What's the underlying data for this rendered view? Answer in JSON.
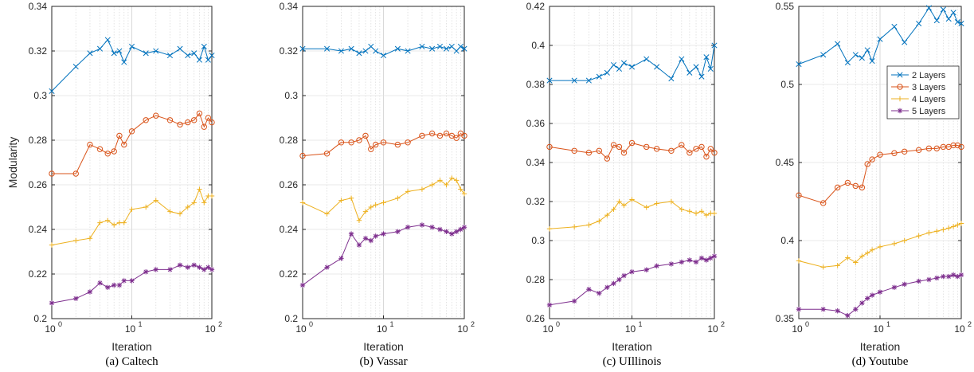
{
  "chart_data": [
    {
      "type": "line",
      "caption": "(a) Caltech",
      "xlabel": "Iteration",
      "ylabel": "Modularity",
      "xscale": "log",
      "xlim": [
        1,
        100
      ],
      "ylim": [
        0.2,
        0.34
      ],
      "yticks": [
        "0.2",
        "0.22",
        "0.24",
        "0.26",
        "0.28",
        "0.3",
        "0.32",
        "0.34"
      ],
      "grid": true,
      "legend": null,
      "series": [
        {
          "name": "2 Layers",
          "color": "#0072BD",
          "marker": "x",
          "x": [
            1,
            2,
            3,
            4,
            5,
            6,
            7,
            8,
            10,
            15,
            20,
            30,
            40,
            50,
            60,
            70,
            80,
            90,
            100
          ],
          "y": [
            0.302,
            0.313,
            0.319,
            0.321,
            0.325,
            0.319,
            0.32,
            0.315,
            0.322,
            0.319,
            0.32,
            0.318,
            0.321,
            0.318,
            0.319,
            0.316,
            0.322,
            0.316,
            0.318
          ]
        },
        {
          "name": "3 Layers",
          "color": "#D95319",
          "marker": "o",
          "x": [
            1,
            2,
            3,
            4,
            5,
            6,
            7,
            8,
            10,
            15,
            20,
            30,
            40,
            50,
            60,
            70,
            80,
            90,
            100
          ],
          "y": [
            0.265,
            0.265,
            0.278,
            0.276,
            0.274,
            0.275,
            0.282,
            0.278,
            0.284,
            0.289,
            0.291,
            0.289,
            0.287,
            0.288,
            0.289,
            0.292,
            0.286,
            0.29,
            0.288
          ]
        },
        {
          "name": "4 Layers",
          "color": "#EDB120",
          "marker": "+",
          "x": [
            1,
            2,
            3,
            4,
            5,
            6,
            7,
            8,
            10,
            15,
            20,
            30,
            40,
            50,
            60,
            70,
            80,
            90,
            100
          ],
          "y": [
            0.233,
            0.235,
            0.236,
            0.243,
            0.244,
            0.242,
            0.243,
            0.243,
            0.249,
            0.25,
            0.253,
            0.248,
            0.247,
            0.25,
            0.252,
            0.258,
            0.252,
            0.255,
            0.255
          ]
        },
        {
          "name": "5 Layers",
          "color": "#7E2F8E",
          "marker": "*",
          "x": [
            1,
            2,
            3,
            4,
            5,
            6,
            7,
            8,
            10,
            15,
            20,
            30,
            40,
            50,
            60,
            70,
            80,
            90,
            100
          ],
          "y": [
            0.207,
            0.209,
            0.212,
            0.216,
            0.214,
            0.215,
            0.215,
            0.217,
            0.217,
            0.221,
            0.222,
            0.222,
            0.224,
            0.223,
            0.224,
            0.223,
            0.222,
            0.223,
            0.222
          ]
        }
      ]
    },
    {
      "type": "line",
      "caption": "(b) Vassar",
      "xlabel": "Iteration",
      "ylabel": "",
      "xscale": "log",
      "xlim": [
        1,
        100
      ],
      "ylim": [
        0.2,
        0.34
      ],
      "yticks": [
        "0.2",
        "0.22",
        "0.24",
        "0.26",
        "0.28",
        "0.3",
        "0.32",
        "0.34"
      ],
      "grid": true,
      "legend": null,
      "series": [
        {
          "name": "2 Layers",
          "color": "#0072BD",
          "marker": "x",
          "x": [
            1,
            2,
            3,
            4,
            5,
            6,
            7,
            8,
            10,
            15,
            20,
            30,
            40,
            50,
            60,
            70,
            80,
            90,
            100
          ],
          "y": [
            0.321,
            0.321,
            0.32,
            0.321,
            0.319,
            0.32,
            0.322,
            0.32,
            0.318,
            0.321,
            0.32,
            0.322,
            0.321,
            0.322,
            0.321,
            0.322,
            0.32,
            0.322,
            0.321
          ]
        },
        {
          "name": "3 Layers",
          "color": "#D95319",
          "marker": "o",
          "x": [
            1,
            2,
            3,
            4,
            5,
            6,
            7,
            8,
            10,
            15,
            20,
            30,
            40,
            50,
            60,
            70,
            80,
            90,
            100
          ],
          "y": [
            0.273,
            0.274,
            0.279,
            0.279,
            0.28,
            0.282,
            0.276,
            0.278,
            0.279,
            0.278,
            0.279,
            0.282,
            0.283,
            0.282,
            0.283,
            0.282,
            0.281,
            0.283,
            0.282
          ]
        },
        {
          "name": "4 Layers",
          "color": "#EDB120",
          "marker": "+",
          "x": [
            1,
            2,
            3,
            4,
            5,
            6,
            7,
            8,
            10,
            15,
            20,
            30,
            40,
            50,
            60,
            70,
            80,
            90,
            100
          ],
          "y": [
            0.252,
            0.247,
            0.253,
            0.254,
            0.244,
            0.248,
            0.25,
            0.251,
            0.252,
            0.254,
            0.257,
            0.258,
            0.26,
            0.262,
            0.26,
            0.263,
            0.262,
            0.258,
            0.256
          ]
        },
        {
          "name": "5 Layers",
          "color": "#7E2F8E",
          "marker": "*",
          "x": [
            1,
            2,
            3,
            4,
            5,
            6,
            7,
            8,
            10,
            15,
            20,
            30,
            40,
            50,
            60,
            70,
            80,
            90,
            100
          ],
          "y": [
            0.215,
            0.223,
            0.227,
            0.238,
            0.233,
            0.236,
            0.235,
            0.237,
            0.238,
            0.239,
            0.241,
            0.242,
            0.241,
            0.24,
            0.239,
            0.238,
            0.239,
            0.24,
            0.241
          ]
        }
      ]
    },
    {
      "type": "line",
      "caption": "(c) UIllinois",
      "xlabel": "Iteration",
      "ylabel": "",
      "xscale": "log",
      "xlim": [
        1,
        100
      ],
      "ylim": [
        0.26,
        0.42
      ],
      "yticks": [
        "0.26",
        "0.28",
        "0.3",
        "0.32",
        "0.34",
        "0.36",
        "0.38",
        "0.4",
        "0.42"
      ],
      "grid": true,
      "legend": null,
      "series": [
        {
          "name": "2 Layers",
          "color": "#0072BD",
          "marker": "x",
          "x": [
            1,
            2,
            3,
            4,
            5,
            6,
            7,
            8,
            10,
            15,
            20,
            30,
            40,
            50,
            60,
            70,
            80,
            90,
            100
          ],
          "y": [
            0.382,
            0.382,
            0.382,
            0.384,
            0.386,
            0.39,
            0.388,
            0.391,
            0.389,
            0.393,
            0.389,
            0.383,
            0.393,
            0.386,
            0.389,
            0.384,
            0.394,
            0.388,
            0.4
          ]
        },
        {
          "name": "3 Layers",
          "color": "#D95319",
          "marker": "o",
          "x": [
            1,
            2,
            3,
            4,
            5,
            6,
            7,
            8,
            10,
            15,
            20,
            30,
            40,
            50,
            60,
            70,
            80,
            90,
            100
          ],
          "y": [
            0.348,
            0.346,
            0.345,
            0.346,
            0.342,
            0.349,
            0.348,
            0.345,
            0.35,
            0.348,
            0.347,
            0.346,
            0.349,
            0.345,
            0.347,
            0.348,
            0.343,
            0.347,
            0.345
          ]
        },
        {
          "name": "4 Layers",
          "color": "#EDB120",
          "marker": "+",
          "x": [
            1,
            2,
            3,
            4,
            5,
            6,
            7,
            8,
            10,
            15,
            20,
            30,
            40,
            50,
            60,
            70,
            80,
            90,
            100
          ],
          "y": [
            0.306,
            0.307,
            0.308,
            0.31,
            0.313,
            0.316,
            0.32,
            0.318,
            0.321,
            0.317,
            0.319,
            0.32,
            0.316,
            0.315,
            0.314,
            0.315,
            0.313,
            0.314,
            0.314
          ]
        },
        {
          "name": "5 Layers",
          "color": "#7E2F8E",
          "marker": "*",
          "x": [
            1,
            2,
            3,
            4,
            5,
            6,
            7,
            8,
            10,
            15,
            20,
            30,
            40,
            50,
            60,
            70,
            80,
            90,
            100
          ],
          "y": [
            0.267,
            0.269,
            0.275,
            0.273,
            0.276,
            0.278,
            0.28,
            0.282,
            0.284,
            0.285,
            0.287,
            0.288,
            0.289,
            0.29,
            0.289,
            0.291,
            0.29,
            0.291,
            0.292
          ]
        }
      ]
    },
    {
      "type": "line",
      "caption": "(d) Youtube",
      "xlabel": "Iteration",
      "ylabel": "",
      "xscale": "log",
      "xlim": [
        1,
        100
      ],
      "ylim": [
        0.35,
        0.55
      ],
      "yticks": [
        "0.35",
        "0.4",
        "0.45",
        "0.5",
        "0.55"
      ],
      "grid": true,
      "legend": "top-right",
      "series": [
        {
          "name": "2 Layers",
          "color": "#0072BD",
          "marker": "x",
          "x": [
            1,
            2,
            3,
            4,
            5,
            6,
            7,
            8,
            10,
            15,
            20,
            30,
            40,
            50,
            60,
            70,
            80,
            90,
            100
          ],
          "y": [
            0.513,
            0.519,
            0.526,
            0.514,
            0.519,
            0.517,
            0.522,
            0.515,
            0.529,
            0.537,
            0.527,
            0.539,
            0.549,
            0.541,
            0.548,
            0.542,
            0.546,
            0.54,
            0.539
          ]
        },
        {
          "name": "3 Layers",
          "color": "#D95319",
          "marker": "o",
          "x": [
            1,
            2,
            3,
            4,
            5,
            6,
            7,
            8,
            10,
            15,
            20,
            30,
            40,
            50,
            60,
            70,
            80,
            90,
            100
          ],
          "y": [
            0.429,
            0.424,
            0.434,
            0.437,
            0.435,
            0.434,
            0.449,
            0.452,
            0.455,
            0.456,
            0.457,
            0.458,
            0.459,
            0.459,
            0.46,
            0.46,
            0.461,
            0.461,
            0.46
          ]
        },
        {
          "name": "4 Layers",
          "color": "#EDB120",
          "marker": "+",
          "x": [
            1,
            2,
            3,
            4,
            5,
            6,
            7,
            8,
            10,
            15,
            20,
            30,
            40,
            50,
            60,
            70,
            80,
            90,
            100
          ],
          "y": [
            0.387,
            0.383,
            0.384,
            0.389,
            0.386,
            0.39,
            0.392,
            0.394,
            0.396,
            0.398,
            0.4,
            0.403,
            0.405,
            0.406,
            0.407,
            0.408,
            0.409,
            0.41,
            0.411
          ]
        },
        {
          "name": "5 Layers",
          "color": "#7E2F8E",
          "marker": "*",
          "x": [
            1,
            2,
            3,
            4,
            5,
            6,
            7,
            8,
            10,
            15,
            20,
            30,
            40,
            50,
            60,
            70,
            80,
            90,
            100
          ],
          "y": [
            0.356,
            0.356,
            0.355,
            0.352,
            0.356,
            0.36,
            0.363,
            0.365,
            0.367,
            0.37,
            0.372,
            0.374,
            0.375,
            0.376,
            0.377,
            0.377,
            0.378,
            0.377,
            0.378
          ]
        }
      ]
    }
  ]
}
